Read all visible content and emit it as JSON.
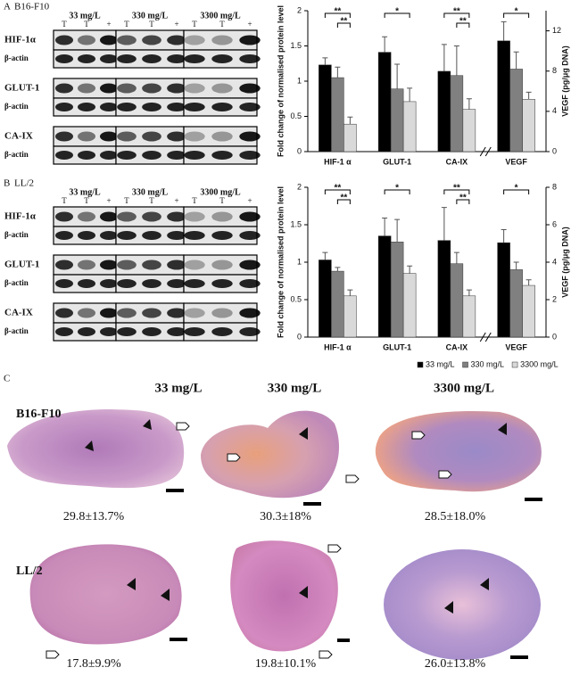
{
  "blots": [
    {
      "panel": "A",
      "cell_line": "B16-F10",
      "doses": [
        "33 mg/L",
        "330 mg/L",
        "3300 mg/L"
      ],
      "lanes": [
        "T",
        "T",
        "+"
      ],
      "rows": [
        "HIF-1α",
        "β-actin",
        "GLUT-1",
        "β-actin",
        "CA-IX",
        "β-actin"
      ]
    },
    {
      "panel": "B",
      "cell_line": "LL/2",
      "doses": [
        "33 mg/L",
        "330 mg/L",
        "3300 mg/L"
      ],
      "lanes": [
        "T",
        "T",
        "+"
      ],
      "rows": [
        "HIF-1α",
        "β-actin",
        "GLUT-1",
        "β-actin",
        "CA-IX",
        "β-actin"
      ]
    }
  ],
  "chart_data": [
    {
      "type": "bar",
      "categories": [
        "HIF-1 α",
        "GLUT-1",
        "CA-IX",
        "VEGF"
      ],
      "category_axes": [
        "y",
        "y",
        "y",
        "y2"
      ],
      "ylabel": "Fold change of normalised protein level",
      "y2label": "VEGF (pg/μg DNA)",
      "ylim": [
        0,
        2
      ],
      "yticks": [
        0,
        0.5,
        1,
        1.5,
        2
      ],
      "y2lim": [
        0,
        14
      ],
      "y2ticks": [
        0,
        4,
        8,
        12
      ],
      "legend": false,
      "series": [
        {
          "name": "33 mg/L",
          "color": "#000000",
          "values": [
            1.23,
            1.41,
            1.14,
            11.0
          ],
          "errors": [
            0.1,
            0.22,
            0.38,
            1.9
          ]
        },
        {
          "name": "330 mg/L",
          "color": "#808080",
          "values": [
            1.05,
            0.89,
            1.08,
            8.2
          ],
          "errors": [
            0.15,
            0.35,
            0.42,
            1.7
          ]
        },
        {
          "name": "3300 mg/L",
          "color": "#d9d9d9",
          "values": [
            0.39,
            0.71,
            0.6,
            5.2
          ],
          "errors": [
            0.1,
            0.19,
            0.15,
            0.7
          ]
        }
      ],
      "significance": [
        {
          "text": "**",
          "category": 0,
          "pair": [
            0,
            2
          ]
        },
        {
          "text": "**",
          "category": 0,
          "pair": [
            1,
            2
          ]
        },
        {
          "text": "*",
          "category": 1,
          "pair": [
            0,
            2
          ]
        },
        {
          "text": "**",
          "category": 2,
          "pair": [
            0,
            2
          ]
        },
        {
          "text": "**",
          "category": 2,
          "pair": [
            1,
            2
          ]
        },
        {
          "text": "*",
          "category": 3,
          "pair": [
            0,
            2
          ]
        }
      ]
    },
    {
      "type": "bar",
      "categories": [
        "HIF-1 α",
        "GLUT-1",
        "CA-IX",
        "VEGF"
      ],
      "category_axes": [
        "y",
        "y",
        "y",
        "y2"
      ],
      "ylabel": "Fold change of normalised protein level",
      "y2label": "VEGF (pg/μg DNA)",
      "ylim": [
        0,
        2
      ],
      "yticks": [
        0,
        0.5,
        1,
        1.5,
        2
      ],
      "y2lim": [
        0,
        8
      ],
      "y2ticks": [
        0,
        2,
        4,
        6,
        8
      ],
      "legend": "bottom",
      "series": [
        {
          "name": "33 mg/L",
          "color": "#000000",
          "values": [
            1.03,
            1.35,
            1.29,
            5.04
          ],
          "errors": [
            0.1,
            0.24,
            0.44,
            0.7
          ]
        },
        {
          "name": "330 mg/L",
          "color": "#808080",
          "values": [
            0.88,
            1.27,
            0.98,
            3.6
          ],
          "errors": [
            0.05,
            0.3,
            0.15,
            0.4
          ]
        },
        {
          "name": "3300 mg/L",
          "color": "#d9d9d9",
          "values": [
            0.55,
            0.85,
            0.55,
            2.76
          ],
          "errors": [
            0.08,
            0.1,
            0.08,
            0.3
          ]
        }
      ],
      "significance": [
        {
          "text": "**",
          "category": 0,
          "pair": [
            0,
            2
          ]
        },
        {
          "text": "**",
          "category": 0,
          "pair": [
            1,
            2
          ]
        },
        {
          "text": "*",
          "category": 1,
          "pair": [
            0,
            2
          ]
        },
        {
          "text": "**",
          "category": 2,
          "pair": [
            0,
            2
          ]
        },
        {
          "text": "**",
          "category": 2,
          "pair": [
            1,
            2
          ]
        },
        {
          "text": "*",
          "category": 3,
          "pair": [
            0,
            2
          ]
        }
      ]
    }
  ],
  "histology": {
    "panel": "C",
    "doses": [
      "33 mg/L",
      "330 mg/L",
      "3300 mg/L"
    ],
    "rows": [
      {
        "name": "B16-F10",
        "captions": [
          "29.8±13.7%",
          "30.3±18%",
          "28.5±18.0%"
        ]
      },
      {
        "name": "LL/2",
        "captions": [
          "17.8±9.9%",
          "19.8±10.1%",
          "26.0±13.8%"
        ]
      }
    ]
  }
}
